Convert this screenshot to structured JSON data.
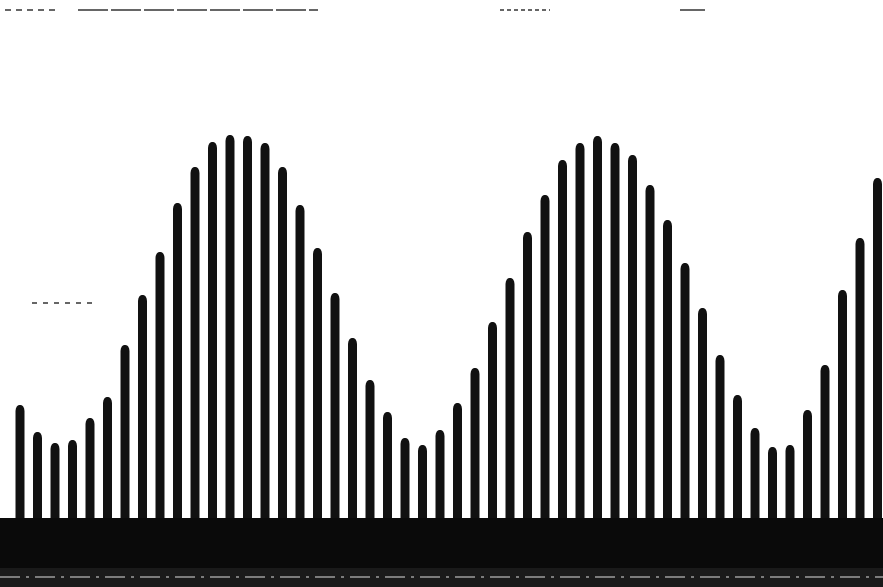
{
  "chart_data": {
    "type": "bar",
    "color": "#111111",
    "values": [
      120,
      93,
      82,
      85,
      107,
      128,
      180,
      230,
      273,
      322,
      358,
      383,
      390,
      389,
      382,
      358,
      320,
      277,
      232,
      187,
      145,
      113,
      87,
      80,
      95,
      122,
      157,
      203,
      247,
      293,
      330,
      365,
      382,
      389,
      382,
      370,
      340,
      305,
      262,
      217,
      170,
      130,
      97,
      78,
      80,
      115,
      160,
      235,
      287,
      347
    ]
  }
}
